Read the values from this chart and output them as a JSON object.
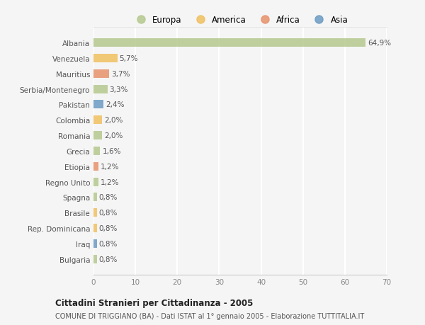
{
  "countries": [
    "Albania",
    "Venezuela",
    "Mauritius",
    "Serbia/Montenegro",
    "Pakistan",
    "Colombia",
    "Romania",
    "Grecia",
    "Etiopia",
    "Regno Unito",
    "Spagna",
    "Brasile",
    "Rep. Dominicana",
    "Iraq",
    "Bulgaria"
  ],
  "values": [
    64.9,
    5.7,
    3.7,
    3.3,
    2.4,
    2.0,
    2.0,
    1.6,
    1.2,
    1.2,
    0.8,
    0.8,
    0.8,
    0.8,
    0.8
  ],
  "labels": [
    "64,9%",
    "5,7%",
    "3,7%",
    "3,3%",
    "2,4%",
    "2,0%",
    "2,0%",
    "1,6%",
    "1,2%",
    "1,2%",
    "0,8%",
    "0,8%",
    "0,8%",
    "0,8%",
    "0,8%"
  ],
  "colors": [
    "#b5c98e",
    "#f0c060",
    "#e8916a",
    "#b5c98e",
    "#6b9bc3",
    "#f0c060",
    "#b5c98e",
    "#b5c98e",
    "#e8916a",
    "#b5c98e",
    "#b5c98e",
    "#f0c060",
    "#f0c060",
    "#6b9bc3",
    "#b5c98e"
  ],
  "legend_labels": [
    "Europa",
    "America",
    "Africa",
    "Asia"
  ],
  "legend_colors": [
    "#b5c98e",
    "#f0c060",
    "#e8916a",
    "#6b9bc3"
  ],
  "xlim": [
    0,
    70
  ],
  "xticks": [
    0,
    10,
    20,
    30,
    40,
    50,
    60,
    70
  ],
  "title": "Cittadini Stranieri per Cittadinanza - 2005",
  "subtitle": "COMUNE DI TRIGGIANO (BA) - Dati ISTAT al 1° gennaio 2005 - Elaborazione TUTTITALIA.IT",
  "bg_color": "#f5f5f5",
  "grid_color": "#ffffff",
  "bar_height": 0.55
}
